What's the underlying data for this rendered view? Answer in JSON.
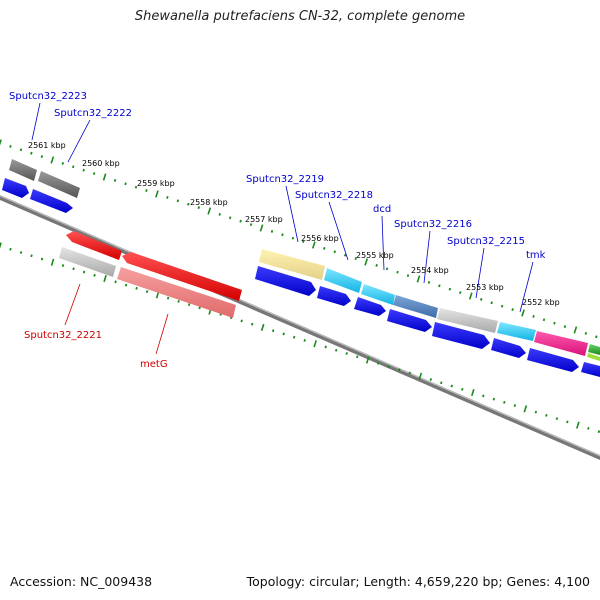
{
  "title": "Shewanella putrefaciens CN-32, complete genome",
  "footer": {
    "accession": "Accession: NC_009438",
    "summary": "Topology: circular; Length: 4,659,220 bp; Genes: 4,100"
  },
  "colors": {
    "forward_label": "#0000cc",
    "reverse_label": "#cc0000",
    "tick": "#1a8a1a",
    "backbone": "#7a7a7a"
  },
  "ruler": [
    {
      "label": "2561 kbp"
    },
    {
      "label": "2560 kbp"
    },
    {
      "label": "2559 kbp"
    },
    {
      "label": "2558 kbp"
    },
    {
      "label": "2557 kbp"
    },
    {
      "label": "2556 kbp"
    },
    {
      "label": "2555 kbp"
    },
    {
      "label": "2554 kbp"
    },
    {
      "label": "2553 kbp"
    },
    {
      "label": "2552 kbp"
    }
  ],
  "forward_labels": [
    {
      "text": "Sputcn32_2223"
    },
    {
      "text": "Sputcn32_2222"
    },
    {
      "text": "Sputcn32_2219"
    },
    {
      "text": "Sputcn32_2218"
    },
    {
      "text": "dcd"
    },
    {
      "text": "Sputcn32_2216"
    },
    {
      "text": "Sputcn32_2215"
    },
    {
      "text": "tmk"
    }
  ],
  "reverse_labels": [
    {
      "text": "Sputcn32_2221"
    },
    {
      "text": "metG"
    }
  ]
}
